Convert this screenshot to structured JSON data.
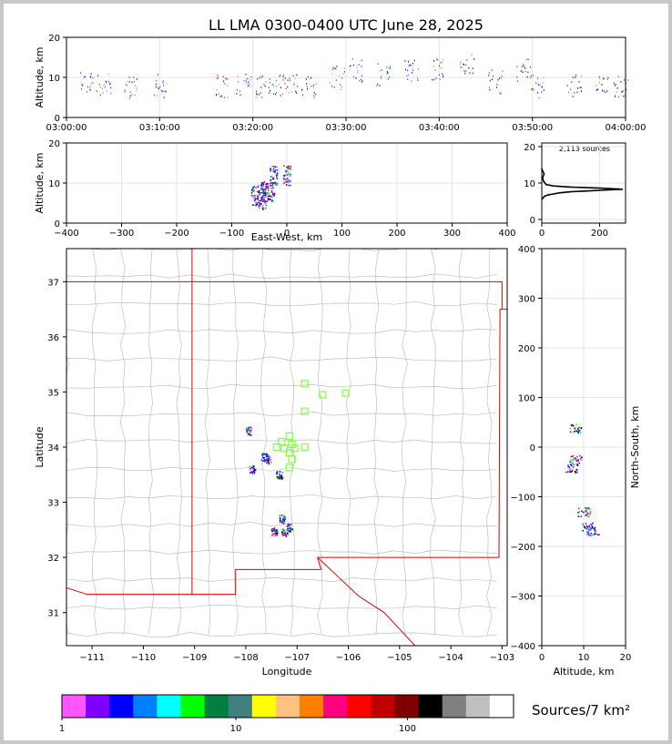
{
  "title": "LL LMA 0300-0400 UTC June 28, 2025",
  "colorbar": {
    "label": "Sources/7 km²",
    "ticks": [
      "1",
      "10",
      "100"
    ],
    "colors": [
      "#ff55ff",
      "#8000ff",
      "#0000ff",
      "#0080ff",
      "#00ffff",
      "#00ff00",
      "#008040",
      "#408080",
      "#ffff00",
      "#ffc080",
      "#ff8000",
      "#ff0080",
      "#ff0000",
      "#c00000",
      "#800000",
      "#000000",
      "#808080",
      "#c0c0c0",
      "#ffffff"
    ]
  },
  "chart_data": [
    {
      "name": "altitude-vs-time",
      "type": "scatter",
      "ylabel": "Altitude, km",
      "xlabel": "",
      "x_ticks": [
        "03:00:00",
        "03:10:00",
        "03:20:00",
        "03:30:00",
        "03:40:00",
        "03:50:00",
        "04:00:00"
      ],
      "xlim": [
        0,
        60
      ],
      "ylim": [
        0,
        20
      ],
      "y_ticks": [
        "0",
        "10",
        "20"
      ],
      "clusters_minutes_altitude_km": [
        [
          2,
          9
        ],
        [
          4,
          8
        ],
        [
          7,
          8
        ],
        [
          10,
          8
        ],
        [
          16.5,
          8
        ],
        [
          19,
          8.5
        ],
        [
          21,
          8
        ],
        [
          22.5,
          8.5
        ],
        [
          24,
          8
        ],
        [
          26,
          8
        ],
        [
          29,
          10
        ],
        [
          31,
          12
        ],
        [
          34,
          11
        ],
        [
          37,
          12
        ],
        [
          40,
          12.5
        ],
        [
          43,
          13
        ],
        [
          46,
          9
        ],
        [
          49,
          12
        ],
        [
          50.5,
          8
        ],
        [
          54.5,
          8
        ],
        [
          57.5,
          7.5
        ],
        [
          59.5,
          8
        ]
      ]
    },
    {
      "name": "altitude-vs-east-west",
      "type": "scatter",
      "ylabel": "Altitude, km",
      "xlabel": "East-West, km",
      "xlim": [
        -400,
        400
      ],
      "ylim": [
        0,
        20
      ],
      "x_ticks": [
        "−400",
        "−300",
        "−200",
        "−100",
        "0",
        "100",
        "200",
        "300",
        "400"
      ],
      "y_ticks": [
        "0",
        "10",
        "20"
      ],
      "clusters_km": [
        [
          -58,
          7
        ],
        [
          -42,
          8
        ],
        [
          -30,
          8
        ],
        [
          -25,
          12
        ],
        [
          0,
          12
        ],
        [
          -45,
          6
        ]
      ]
    },
    {
      "name": "altitude-histogram",
      "type": "line",
      "annotation": "2,113 sources",
      "xlim": [
        0,
        290
      ],
      "ylim": [
        -1,
        21
      ],
      "x_ticks": [
        "0",
        "200"
      ],
      "y_ticks": [
        "0",
        "10",
        "20"
      ],
      "x": [
        0,
        5,
        12,
        25,
        40,
        60,
        100,
        150,
        200,
        280,
        200,
        100,
        40,
        15,
        6,
        3,
        8,
        2,
        0
      ],
      "y": [
        5.5,
        6,
        6.5,
        6.8,
        7,
        7.3,
        7.6,
        7.8,
        8.0,
        8.3,
        8.6,
        8.9,
        9.2,
        9.6,
        10.5,
        11.5,
        12.5,
        13.5,
        14
      ]
    },
    {
      "name": "plan-view-map",
      "type": "scatter",
      "xlabel": "Longitude",
      "ylabel": "Latitude",
      "xlim": [
        -111.5,
        -102.9
      ],
      "ylim": [
        30.4,
        37.6
      ],
      "x_ticks": [
        "−111",
        "−110",
        "−109",
        "−108",
        "−107",
        "−106",
        "−105",
        "−104",
        "−103"
      ],
      "y_ticks": [
        "31",
        "32",
        "33",
        "34",
        "35",
        "36",
        "37"
      ],
      "stations_lon_lat": [
        [
          -106.85,
          35.15
        ],
        [
          -106.5,
          34.95
        ],
        [
          -106.05,
          34.98
        ],
        [
          -106.85,
          34.65
        ],
        [
          -107.15,
          34.2
        ],
        [
          -107.3,
          34.1
        ],
        [
          -107.1,
          34.05
        ],
        [
          -107.4,
          34.0
        ],
        [
          -107.25,
          33.98
        ],
        [
          -107.05,
          33.98
        ],
        [
          -106.85,
          34.0
        ],
        [
          -107.15,
          33.9
        ],
        [
          -107.1,
          33.78
        ],
        [
          -107.15,
          33.63
        ]
      ],
      "clusters_lon_lat": [
        [
          -107.65,
          33.82
        ],
        [
          -107.58,
          33.78
        ],
        [
          -107.95,
          34.3
        ],
        [
          -107.88,
          33.6
        ],
        [
          -107.35,
          33.5
        ],
        [
          -107.15,
          32.55
        ],
        [
          -107.25,
          32.45
        ],
        [
          -107.45,
          32.48
        ],
        [
          -107.3,
          32.7
        ]
      ]
    },
    {
      "name": "north-south-vs-altitude",
      "type": "scatter",
      "xlabel": "Altitude, km",
      "ylabel": "North-South, km",
      "xlim": [
        0,
        20
      ],
      "ylim": [
        -400,
        400
      ],
      "x_ticks": [
        "0",
        "10",
        "20"
      ],
      "y_ticks": [
        "−400",
        "−300",
        "−200",
        "−100",
        "0",
        "100",
        "200",
        "300",
        "400"
      ],
      "clusters_km": [
        [
          8,
          38
        ],
        [
          8,
          -25
        ],
        [
          7,
          -42
        ],
        [
          11,
          -160
        ],
        [
          12,
          -168
        ],
        [
          10,
          -130
        ]
      ]
    }
  ]
}
